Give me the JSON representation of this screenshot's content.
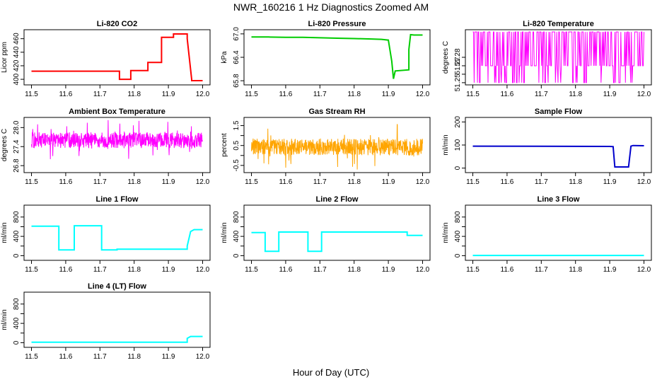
{
  "title": "NWR_160216  1 Hz Diagnostics Zoomed AM",
  "xlabel": "Hour of Day (UTC)",
  "chart_data": [
    {
      "type": "line",
      "title": "Li-820 CO2",
      "ylabel": "Licor ppm",
      "color": "#ff0000",
      "xlim": [
        11.5,
        12.0
      ],
      "ylim": [
        395,
        470
      ],
      "xticks": [
        11.5,
        11.6,
        11.7,
        11.8,
        11.9,
        12.0
      ],
      "yticks": [
        400,
        420,
        440,
        460
      ],
      "series": [
        {
          "x": [
            11.5,
            11.757,
            11.757,
            11.79,
            11.79,
            11.84,
            11.84,
            11.88,
            11.88,
            11.915,
            11.915,
            11.955,
            11.955,
            11.968,
            11.968,
            12.0
          ],
          "y": [
            412,
            412,
            400,
            400,
            413,
            413,
            425,
            425,
            462,
            462,
            467,
            467,
            460,
            400,
            398,
            398
          ]
        }
      ]
    },
    {
      "type": "line",
      "title": "Li-820 Pressure",
      "ylabel": "kPa",
      "color": "#00cc00",
      "xlim": [
        11.5,
        12.0
      ],
      "ylim": [
        65.75,
        67.05
      ],
      "xticks": [
        11.5,
        11.6,
        11.7,
        11.8,
        11.9,
        12.0
      ],
      "yticks": [
        65.8,
        66.4,
        67.0
      ],
      "yticklabels": [
        "65.8",
        "66.4",
        "67.0"
      ],
      "series": [
        {
          "x": [
            11.5,
            11.55,
            11.6,
            11.65,
            11.7,
            11.75,
            11.8,
            11.85,
            11.88,
            11.9,
            11.91,
            11.915,
            11.92,
            11.96,
            11.96,
            11.965,
            11.975,
            12.0
          ],
          "y": [
            66.92,
            66.92,
            66.91,
            66.91,
            66.9,
            66.89,
            66.88,
            66.87,
            66.86,
            66.84,
            66.3,
            65.85,
            66.05,
            66.08,
            66.6,
            66.98,
            66.97,
            66.97
          ]
        }
      ]
    },
    {
      "type": "line",
      "title": "Li-820 Temperature",
      "ylabel": "degrees C",
      "color": "#ff00ff",
      "xlim": [
        11.5,
        12.0
      ],
      "ylim": [
        51.25,
        51.31
      ],
      "xticks": [
        11.5,
        11.6,
        11.7,
        11.8,
        11.9,
        12.0
      ],
      "yticks": [
        51.25,
        51.26,
        51.27,
        51.28
      ],
      "yticklabels": [
        "51.25",
        "",
        "51.27",
        "51.28"
      ],
      "levels": [
        51.25,
        51.27,
        51.31
      ],
      "series": [
        {
          "x": [
            11.5,
            12.0
          ],
          "y": [
            51.27,
            51.27
          ]
        }
      ]
    },
    {
      "type": "line",
      "title": "Ambient Box Temperature",
      "ylabel": "degrees C",
      "color": "#ff00ff",
      "xlim": [
        11.5,
        12.0
      ],
      "ylim": [
        26.65,
        28.25
      ],
      "xticks": [
        11.5,
        11.6,
        11.7,
        11.8,
        11.9,
        12.0
      ],
      "yticks": [
        26.8,
        27.4,
        28.0
      ],
      "yticklabels": [
        "26.8",
        "27.4",
        "28.0"
      ],
      "band": [
        27.35,
        27.85
      ],
      "series": [
        {
          "x": [
            11.5,
            12.0
          ],
          "y": [
            27.6,
            27.6
          ]
        }
      ]
    },
    {
      "type": "line",
      "title": "Gas Stream RH",
      "ylabel": "percent",
      "color": "#ffa500",
      "xlim": [
        11.5,
        12.0
      ],
      "ylim": [
        -0.75,
        1.8
      ],
      "xticks": [
        11.5,
        11.6,
        11.7,
        11.8,
        11.9,
        12.0
      ],
      "yticks": [
        -0.5,
        0.0,
        0.5,
        1.0,
        1.5
      ],
      "yticklabels": [
        "-0.5",
        "0.5",
        "1.5"
      ],
      "band": [
        0.0,
        0.85
      ],
      "series": [
        {
          "x": [
            11.5,
            12.0
          ],
          "y": [
            0.45,
            0.45
          ]
        }
      ]
    },
    {
      "type": "line",
      "title": "Sample Flow",
      "ylabel": "ml/min",
      "color": "#0000cc",
      "xlim": [
        11.5,
        12.0
      ],
      "ylim": [
        -10,
        210
      ],
      "xticks": [
        11.5,
        11.6,
        11.7,
        11.8,
        11.9,
        12.0
      ],
      "yticks": [
        0,
        100,
        200
      ],
      "series": [
        {
          "x": [
            11.5,
            11.9,
            11.91,
            11.915,
            11.955,
            11.962,
            11.968,
            12.0
          ],
          "y": [
            95,
            94,
            93,
            5,
            5,
            95,
            98,
            97
          ]
        }
      ]
    },
    {
      "type": "line",
      "title": "Line 1 Flow",
      "ylabel": "ml/min",
      "color": "#00ffff",
      "xlim": [
        11.5,
        12.0
      ],
      "ylim": [
        -50,
        1000
      ],
      "xticks": [
        11.5,
        11.6,
        11.7,
        11.8,
        11.9,
        12.0
      ],
      "yticks": [
        0,
        200,
        400,
        600,
        800
      ],
      "yticklabels": [
        "0",
        "400",
        "800"
      ],
      "series": [
        {
          "x": [
            11.5,
            11.58,
            11.58,
            11.625,
            11.625,
            11.705,
            11.705,
            11.75,
            11.75,
            11.955,
            11.955,
            11.965,
            11.975,
            12.0
          ],
          "y": [
            610,
            610,
            120,
            120,
            620,
            620,
            120,
            120,
            135,
            135,
            200,
            500,
            540,
            540
          ]
        }
      ]
    },
    {
      "type": "line",
      "title": "Line 2 Flow",
      "ylabel": "ml/min",
      "color": "#00ffff",
      "xlim": [
        11.5,
        12.0
      ],
      "ylim": [
        -50,
        1000
      ],
      "xticks": [
        11.5,
        11.6,
        11.7,
        11.8,
        11.9,
        12.0
      ],
      "yticks": [
        0,
        200,
        400,
        600,
        800
      ],
      "yticklabels": [
        "0",
        "400",
        "800"
      ],
      "series": [
        {
          "x": [
            11.5,
            11.54,
            11.54,
            11.58,
            11.58,
            11.665,
            11.665,
            11.705,
            11.705,
            11.955,
            11.955,
            12.0
          ],
          "y": [
            480,
            480,
            90,
            90,
            490,
            490,
            90,
            90,
            490,
            490,
            420,
            420
          ]
        }
      ]
    },
    {
      "type": "line",
      "title": "Line 3 Flow",
      "ylabel": "ml/min",
      "color": "#00ffff",
      "xlim": [
        11.5,
        12.0
      ],
      "ylim": [
        -50,
        1000
      ],
      "xticks": [
        11.5,
        11.6,
        11.7,
        11.8,
        11.9,
        12.0
      ],
      "yticks": [
        0,
        200,
        400,
        600,
        800
      ],
      "yticklabels": [
        "0",
        "400",
        "800"
      ],
      "series": [
        {
          "x": [
            11.5,
            12.0
          ],
          "y": [
            5,
            5
          ]
        }
      ]
    },
    {
      "type": "line",
      "title": "Line 4 (LT) Flow",
      "ylabel": "ml/min",
      "color": "#00ffff",
      "xlim": [
        11.5,
        12.0
      ],
      "ylim": [
        -50,
        1000
      ],
      "xticks": [
        11.5,
        11.6,
        11.7,
        11.8,
        11.9,
        12.0
      ],
      "yticks": [
        0,
        200,
        400,
        600,
        800
      ],
      "yticklabels": [
        "0",
        "400",
        "800"
      ],
      "series": [
        {
          "x": [
            11.5,
            11.955,
            11.955,
            11.965,
            12.0
          ],
          "y": [
            10,
            10,
            90,
            130,
            130
          ]
        }
      ]
    }
  ]
}
